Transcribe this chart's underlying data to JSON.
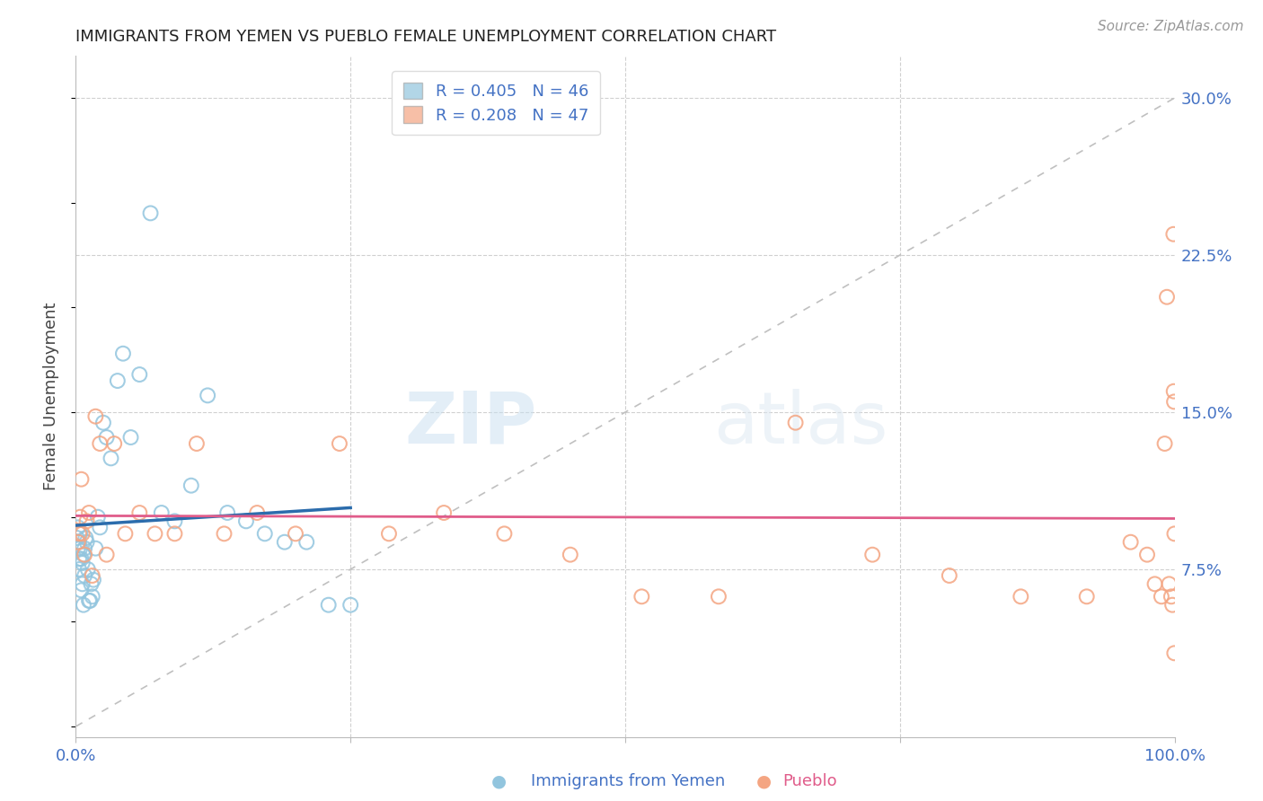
{
  "title": "IMMIGRANTS FROM YEMEN VS PUEBLO FEMALE UNEMPLOYMENT CORRELATION CHART",
  "source": "Source: ZipAtlas.com",
  "ylabel": "Female Unemployment",
  "xlim": [
    0.0,
    1.0
  ],
  "ylim": [
    -0.005,
    0.32
  ],
  "blue_color": "#92c5de",
  "pink_color": "#f4a582",
  "blue_line_color": "#2b6cac",
  "pink_line_color": "#e05c8a",
  "diag_line_color": "#c0c0c0",
  "watermark_zip": "ZIP",
  "watermark_atlas": "atlas",
  "legend_r1": "R = 0.405   N = 46",
  "legend_r2": "R = 0.208   N = 47",
  "blue_scatter_x": [
    0.001,
    0.002,
    0.002,
    0.003,
    0.003,
    0.003,
    0.004,
    0.004,
    0.005,
    0.005,
    0.006,
    0.006,
    0.007,
    0.007,
    0.008,
    0.008,
    0.009,
    0.01,
    0.011,
    0.012,
    0.013,
    0.014,
    0.015,
    0.016,
    0.018,
    0.02,
    0.022,
    0.025,
    0.028,
    0.032,
    0.038,
    0.043,
    0.05,
    0.058,
    0.068,
    0.078,
    0.09,
    0.105,
    0.12,
    0.138,
    0.155,
    0.172,
    0.19,
    0.21,
    0.23,
    0.25
  ],
  "blue_scatter_y": [
    0.09,
    0.085,
    0.095,
    0.088,
    0.08,
    0.075,
    0.085,
    0.092,
    0.08,
    0.065,
    0.078,
    0.068,
    0.082,
    0.058,
    0.085,
    0.072,
    0.09,
    0.088,
    0.075,
    0.06,
    0.06,
    0.068,
    0.062,
    0.07,
    0.085,
    0.1,
    0.095,
    0.145,
    0.138,
    0.128,
    0.165,
    0.178,
    0.138,
    0.168,
    0.245,
    0.102,
    0.098,
    0.115,
    0.158,
    0.102,
    0.098,
    0.092,
    0.088,
    0.088,
    0.058,
    0.058
  ],
  "pink_scatter_x": [
    0.002,
    0.003,
    0.004,
    0.005,
    0.006,
    0.008,
    0.01,
    0.012,
    0.015,
    0.018,
    0.022,
    0.028,
    0.035,
    0.045,
    0.058,
    0.072,
    0.09,
    0.11,
    0.135,
    0.165,
    0.2,
    0.24,
    0.285,
    0.335,
    0.39,
    0.45,
    0.515,
    0.585,
    0.655,
    0.725,
    0.795,
    0.86,
    0.92,
    0.96,
    0.975,
    0.982,
    0.988,
    0.991,
    0.993,
    0.995,
    0.997,
    0.998,
    0.999,
    0.9993,
    0.9996,
    0.9998,
    0.9999
  ],
  "pink_scatter_y": [
    0.088,
    0.092,
    0.1,
    0.118,
    0.092,
    0.082,
    0.098,
    0.102,
    0.072,
    0.148,
    0.135,
    0.082,
    0.135,
    0.092,
    0.102,
    0.092,
    0.092,
    0.135,
    0.092,
    0.102,
    0.092,
    0.135,
    0.092,
    0.102,
    0.092,
    0.082,
    0.062,
    0.062,
    0.145,
    0.082,
    0.072,
    0.062,
    0.062,
    0.088,
    0.082,
    0.068,
    0.062,
    0.135,
    0.205,
    0.068,
    0.062,
    0.058,
    0.235,
    0.16,
    0.155,
    0.035,
    0.092
  ]
}
